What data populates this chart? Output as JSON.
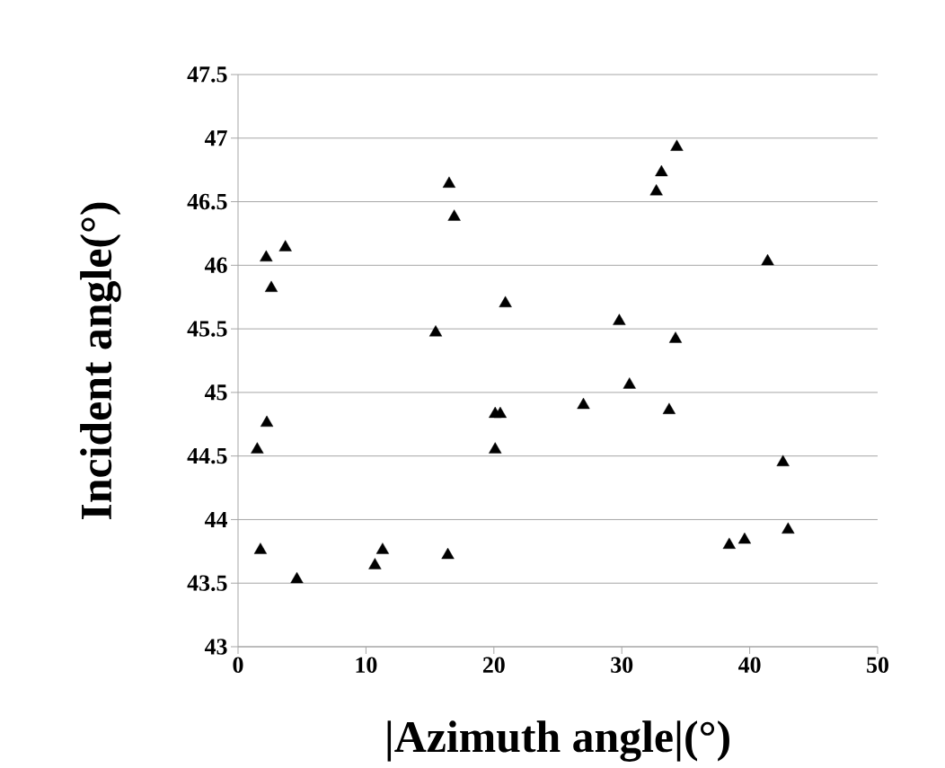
{
  "chart_data": {
    "type": "scatter",
    "xlabel": "|Azimuth angle|(°)",
    "ylabel": "Incident angle(°)",
    "x": [
      1.5,
      1.75,
      2.2,
      2.25,
      2.6,
      3.7,
      4.6,
      10.7,
      11.3,
      15.45,
      16.4,
      16.5,
      16.9,
      20.1,
      20.1,
      20.5,
      20.9,
      27.0,
      29.8,
      30.6,
      32.7,
      33.1,
      33.7,
      34.2,
      34.3,
      38.4,
      39.6,
      41.4,
      42.6,
      43.0
    ],
    "values": [
      44.55,
      43.76,
      46.06,
      44.76,
      45.82,
      46.14,
      43.53,
      43.64,
      43.76,
      45.47,
      43.72,
      46.64,
      46.38,
      44.55,
      44.83,
      44.83,
      45.7,
      44.9,
      45.56,
      45.06,
      46.58,
      46.73,
      44.86,
      45.42,
      46.93,
      43.8,
      43.84,
      46.03,
      44.45,
      43.92
    ],
    "color": "#000000",
    "marker": "triangle",
    "grid": "y",
    "xlim": [
      0,
      50
    ],
    "xticks": [
      0,
      10,
      20,
      30,
      40,
      50
    ],
    "ylim": [
      43,
      47.5
    ],
    "yticks": [
      43,
      43.5,
      44,
      44.5,
      45,
      45.5,
      46,
      46.5,
      47,
      47.5
    ]
  }
}
